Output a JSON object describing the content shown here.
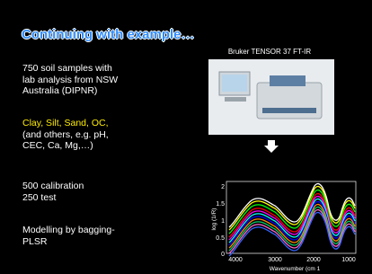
{
  "slide": {
    "title": "Continuing with example…",
    "blocks": [
      {
        "lines": [
          "750 soil samples with",
          "lab analysis from NSW",
          "Australia (DIPNR)"
        ]
      },
      {
        "highlight": "Clay, Silt, Sand, OC,",
        "lines": [
          "(and others, e.g. pH,",
          "CEC, Ca, Mg,…)"
        ]
      },
      {
        "lines": [
          "500 calibration",
          "250 test"
        ]
      },
      {
        "lines": [
          "Modelling by bagging-",
          "PLSR"
        ]
      }
    ],
    "instrument_caption": "Bruker TENSOR 37 FT-IR",
    "spectra": {
      "y_label": "log (1/R)",
      "x_label": "Wavenumber (cm 1",
      "y_ticks": [
        "2",
        "1.5",
        "1",
        "0.5",
        "0"
      ],
      "x_ticks": [
        "4000",
        "3000",
        "2000",
        "1000"
      ]
    }
  }
}
